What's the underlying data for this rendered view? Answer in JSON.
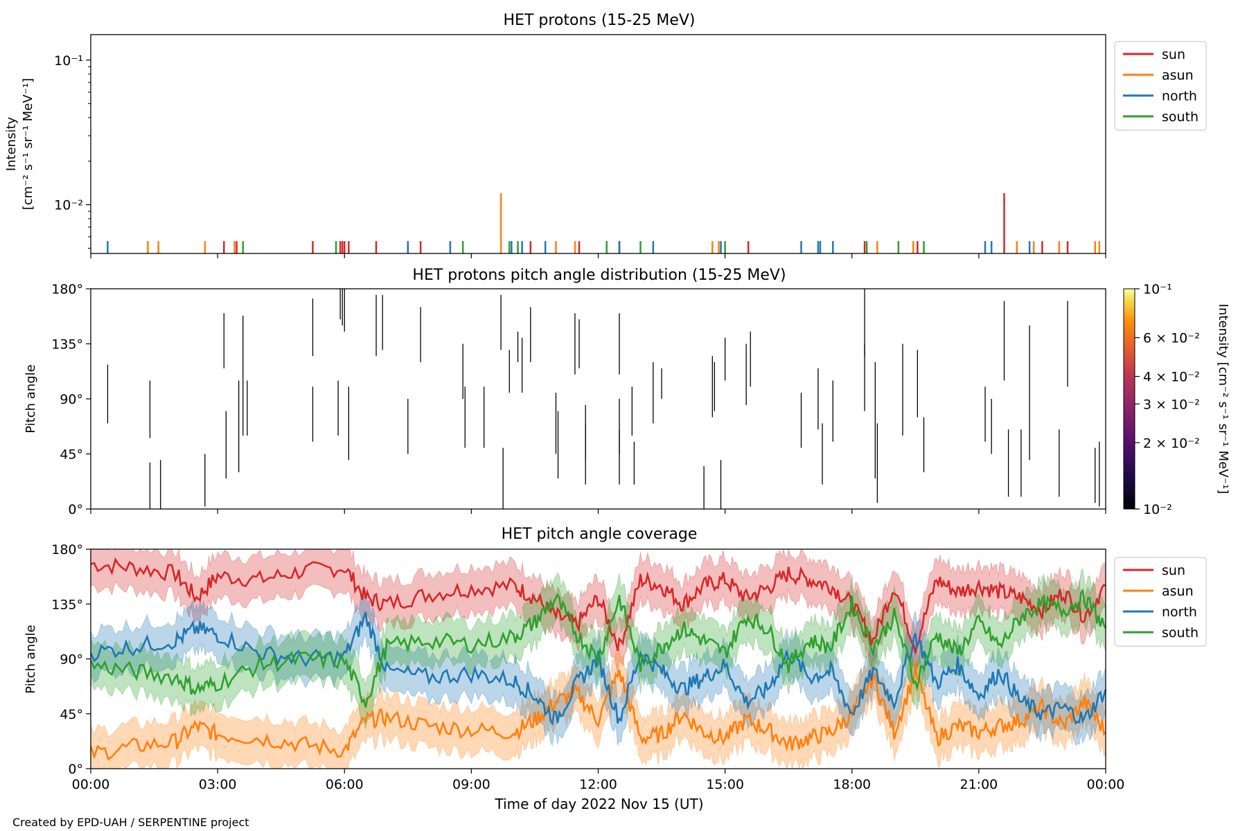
{
  "footer": "Created by EPD-UAH / SERPENTINE project",
  "xlabel": "Time of day 2022 Nov 15 (UT)",
  "xticks": [
    "00:00",
    "03:00",
    "06:00",
    "09:00",
    "12:00",
    "15:00",
    "18:00",
    "21:00",
    "00:00"
  ],
  "colors": {
    "sun": "#d62728",
    "asun": "#ff7f0e",
    "north": "#1f77b4",
    "south": "#2ca02c"
  },
  "chart_data": [
    {
      "type": "line",
      "title": "HET protons (15-25 MeV)",
      "ylabel": [
        "Intensity",
        "[cm⁻² s⁻¹ sr⁻¹ MeV⁻¹]"
      ],
      "yscale": "log",
      "ylim": [
        0.0046,
        0.15
      ],
      "ytick_labels": [
        "10⁻¹",
        "10⁻²"
      ],
      "ytick_values": [
        0.1,
        0.01
      ],
      "xlim_hours": [
        0,
        24
      ],
      "legend": [
        "sun",
        "asun",
        "north",
        "south"
      ],
      "legend_placement": "outside right, top",
      "series": [
        {
          "name": "sun",
          "spikes": [
            [
              3.15,
              0.0056
            ],
            [
              3.45,
              0.0056
            ],
            [
              5.25,
              0.0056
            ],
            [
              5.9,
              0.0056
            ],
            [
              5.95,
              0.0056
            ],
            [
              6.0,
              0.0056
            ],
            [
              6.1,
              0.0056
            ],
            [
              6.75,
              0.0056
            ],
            [
              7.8,
              0.0056
            ],
            [
              10.4,
              0.0056
            ],
            [
              11.55,
              0.0056
            ],
            [
              12.5,
              0.0056
            ],
            [
              15.55,
              0.0056
            ],
            [
              18.3,
              0.0056
            ],
            [
              19.55,
              0.0056
            ],
            [
              21.6,
              0.012
            ],
            [
              22.5,
              0.0056
            ],
            [
              23.1,
              0.0056
            ]
          ]
        },
        {
          "name": "asun",
          "spikes": [
            [
              1.35,
              0.0056
            ],
            [
              1.6,
              0.0056
            ],
            [
              2.7,
              0.0056
            ],
            [
              3.4,
              0.0056
            ],
            [
              7.5,
              0.0056
            ],
            [
              9.7,
              0.012
            ],
            [
              11.0,
              0.0056
            ],
            [
              11.45,
              0.0056
            ],
            [
              14.7,
              0.0056
            ],
            [
              14.85,
              0.0056
            ],
            [
              18.6,
              0.0056
            ],
            [
              19.45,
              0.0056
            ],
            [
              21.9,
              0.0056
            ],
            [
              22.3,
              0.0056
            ],
            [
              22.9,
              0.0056
            ],
            [
              23.75,
              0.0056
            ],
            [
              23.85,
              0.0056
            ]
          ]
        },
        {
          "name": "north",
          "spikes": [
            [
              0.4,
              0.0056
            ],
            [
              7.5,
              0.0056
            ],
            [
              8.5,
              0.0056
            ],
            [
              9.95,
              0.0056
            ],
            [
              10.2,
              0.0056
            ],
            [
              10.75,
              0.0056
            ],
            [
              12.5,
              0.0056
            ],
            [
              13.3,
              0.0056
            ],
            [
              14.9,
              0.0056
            ],
            [
              16.8,
              0.0056
            ],
            [
              17.2,
              0.0056
            ],
            [
              17.25,
              0.0056
            ],
            [
              17.55,
              0.0056
            ],
            [
              21.15,
              0.0056
            ],
            [
              21.3,
              0.0056
            ],
            [
              22.2,
              0.0056
            ]
          ]
        },
        {
          "name": "south",
          "spikes": [
            [
              3.6,
              0.0056
            ],
            [
              5.8,
              0.0056
            ],
            [
              8.8,
              0.0056
            ],
            [
              9.9,
              0.0056
            ],
            [
              10.1,
              0.0056
            ],
            [
              12.2,
              0.0056
            ],
            [
              13.0,
              0.0056
            ],
            [
              15.0,
              0.0056
            ],
            [
              18.35,
              0.0056
            ],
            [
              19.1,
              0.0056
            ],
            [
              19.7,
              0.0056
            ]
          ]
        }
      ]
    },
    {
      "type": "heatmap",
      "title": "HET protons pitch angle distribution (15-25 MeV)",
      "ylabel": "Pitch angle",
      "ylim": [
        0,
        180
      ],
      "ytick_labels": [
        "0°",
        "45°",
        "90°",
        "135°",
        "180°"
      ],
      "colorbar": {
        "label": "Intensity [cm⁻² s⁻¹ sr⁻¹ MeV⁻¹]",
        "scale": "log",
        "range": [
          0.01,
          0.1
        ],
        "tick_labels": [
          "10⁻¹",
          "6 × 10⁻²",
          "4 × 10⁻²",
          "3 × 10⁻²",
          "2 × 10⁻²",
          "10⁻²"
        ],
        "tick_values": [
          0.1,
          0.06,
          0.04,
          0.03,
          0.02,
          0.01
        ]
      },
      "marks": [
        [
          0.4,
          70,
          118
        ],
        [
          1.4,
          58,
          105
        ],
        [
          1.4,
          0,
          38
        ],
        [
          1.65,
          0,
          40
        ],
        [
          2.7,
          2,
          45
        ],
        [
          3.15,
          115,
          160
        ],
        [
          3.2,
          25,
          80
        ],
        [
          3.5,
          30,
          105
        ],
        [
          3.6,
          60,
          158
        ],
        [
          3.7,
          60,
          105
        ],
        [
          5.25,
          125,
          172
        ],
        [
          5.25,
          55,
          100
        ],
        [
          5.85,
          60,
          105
        ],
        [
          5.9,
          155,
          180
        ],
        [
          5.95,
          150,
          180
        ],
        [
          6.0,
          145,
          180
        ],
        [
          6.1,
          40,
          100
        ],
        [
          6.75,
          125,
          175
        ],
        [
          6.9,
          130,
          175
        ],
        [
          7.5,
          45,
          90
        ],
        [
          7.8,
          120,
          165
        ],
        [
          8.8,
          90,
          135
        ],
        [
          8.85,
          50,
          100
        ],
        [
          9.3,
          50,
          100
        ],
        [
          9.7,
          130,
          175
        ],
        [
          9.75,
          0,
          50
        ],
        [
          9.9,
          95,
          130
        ],
        [
          10.1,
          120,
          145
        ],
        [
          10.2,
          95,
          140
        ],
        [
          10.4,
          120,
          165
        ],
        [
          11.0,
          45,
          95
        ],
        [
          11.05,
          25,
          80
        ],
        [
          11.45,
          110,
          160
        ],
        [
          11.55,
          115,
          155
        ],
        [
          11.7,
          40,
          85
        ],
        [
          11.7,
          20,
          70
        ],
        [
          12.5,
          110,
          160
        ],
        [
          12.5,
          45,
          90
        ],
        [
          12.5,
          20,
          65
        ],
        [
          12.8,
          60,
          100
        ],
        [
          12.85,
          20,
          55
        ],
        [
          13.3,
          70,
          120
        ],
        [
          13.5,
          90,
          115
        ],
        [
          14.5,
          0,
          35
        ],
        [
          14.7,
          75,
          125
        ],
        [
          14.75,
          80,
          120
        ],
        [
          14.9,
          0,
          40
        ],
        [
          15.0,
          105,
          140
        ],
        [
          15.5,
          85,
          135
        ],
        [
          15.6,
          100,
          145
        ],
        [
          16.8,
          50,
          95
        ],
        [
          17.2,
          65,
          115
        ],
        [
          17.3,
          20,
          70
        ],
        [
          17.55,
          55,
          105
        ],
        [
          18.3,
          80,
          180
        ],
        [
          18.3,
          135,
          125
        ],
        [
          18.55,
          25,
          120
        ],
        [
          18.6,
          5,
          70
        ],
        [
          19.2,
          60,
          135
        ],
        [
          19.7,
          30,
          75
        ],
        [
          19.55,
          75,
          130
        ],
        [
          21.15,
          55,
          100
        ],
        [
          21.3,
          45,
          90
        ],
        [
          21.6,
          105,
          170
        ],
        [
          21.7,
          10,
          65
        ],
        [
          22.0,
          10,
          65
        ],
        [
          22.2,
          40,
          150
        ],
        [
          22.9,
          10,
          65
        ],
        [
          23.1,
          100,
          170
        ],
        [
          23.75,
          5,
          50
        ],
        [
          23.85,
          2,
          55
        ]
      ]
    },
    {
      "type": "area",
      "title": "HET pitch angle coverage",
      "ylabel": "Pitch angle",
      "ylim": [
        0,
        180
      ],
      "ytick_labels": [
        "0°",
        "45°",
        "90°",
        "135°",
        "180°"
      ],
      "xlim_hours": [
        0,
        24
      ],
      "legend": [
        "sun",
        "asun",
        "north",
        "south"
      ],
      "legend_placement": "outside right, top",
      "band_half_width_deg": 18,
      "series": [
        {
          "name": "sun",
          "x": [
            0,
            1,
            2,
            2.5,
            3,
            4,
            5,
            6,
            6.5,
            7,
            8,
            9,
            10,
            10.5,
            11,
            11.5,
            12,
            12.5,
            13,
            13.5,
            14,
            14.5,
            15,
            15.5,
            16,
            16.5,
            17,
            17.5,
            18,
            18.5,
            19,
            19.5,
            20,
            20.5,
            21,
            21.5,
            22,
            22.5,
            23,
            23.5,
            24
          ],
          "y": [
            168,
            165,
            160,
            140,
            158,
            155,
            162,
            165,
            140,
            135,
            143,
            148,
            150,
            140,
            125,
            118,
            140,
            100,
            155,
            150,
            135,
            150,
            155,
            140,
            148,
            160,
            155,
            150,
            135,
            105,
            150,
            100,
            155,
            145,
            150,
            145,
            140,
            130,
            145,
            125,
            150
          ]
        },
        {
          "name": "asun",
          "x": [
            0,
            1,
            2,
            2.5,
            3,
            4,
            5,
            6,
            6.5,
            7,
            8,
            9,
            10,
            10.5,
            11,
            11.5,
            12,
            12.5,
            13,
            13.5,
            14,
            14.5,
            15,
            15.5,
            16,
            16.5,
            17,
            17.5,
            18,
            18.5,
            19,
            19.5,
            20,
            20.5,
            21,
            21.5,
            22,
            22.5,
            23,
            23.5,
            24
          ],
          "y": [
            12,
            18,
            22,
            35,
            28,
            25,
            20,
            15,
            40,
            42,
            35,
            32,
            30,
            40,
            55,
            62,
            40,
            80,
            25,
            28,
            45,
            30,
            25,
            40,
            32,
            20,
            25,
            30,
            45,
            75,
            30,
            80,
            25,
            35,
            30,
            35,
            40,
            50,
            35,
            55,
            30
          ]
        },
        {
          "name": "north",
          "x": [
            0,
            1,
            2,
            2.5,
            3,
            4,
            5,
            6,
            6.5,
            7,
            8,
            9,
            10,
            10.5,
            11,
            11.5,
            12,
            12.5,
            13,
            13.5,
            14,
            14.5,
            15,
            15.5,
            16,
            16.5,
            17,
            17.5,
            18,
            18.5,
            19,
            19.5,
            20,
            20.5,
            21,
            21.5,
            22,
            22.5,
            23,
            23.5,
            24
          ],
          "y": [
            95,
            100,
            105,
            115,
            110,
            95,
            90,
            92,
            125,
            80,
            75,
            78,
            72,
            60,
            40,
            70,
            90,
            40,
            95,
            80,
            65,
            75,
            85,
            55,
            65,
            95,
            75,
            80,
            45,
            80,
            55,
            110,
            70,
            85,
            60,
            80,
            55,
            45,
            50,
            40,
            65
          ]
        },
        {
          "name": "south",
          "x": [
            0,
            1,
            2,
            2.5,
            3,
            4,
            5,
            6,
            6.5,
            7,
            8,
            9,
            10,
            10.5,
            11,
            11.5,
            12,
            12.5,
            13,
            13.5,
            14,
            14.5,
            15,
            15.5,
            16,
            16.5,
            17,
            17.5,
            18,
            18.5,
            19,
            19.5,
            20,
            20.5,
            21,
            21.5,
            22,
            22.5,
            23,
            23.5,
            24
          ],
          "y": [
            85,
            80,
            75,
            65,
            70,
            85,
            90,
            88,
            55,
            100,
            105,
            102,
            108,
            120,
            140,
            110,
            90,
            140,
            85,
            100,
            115,
            105,
            95,
            125,
            115,
            85,
            105,
            100,
            135,
            100,
            125,
            70,
            110,
            95,
            120,
            100,
            125,
            135,
            130,
            140,
            115
          ]
        }
      ]
    }
  ]
}
